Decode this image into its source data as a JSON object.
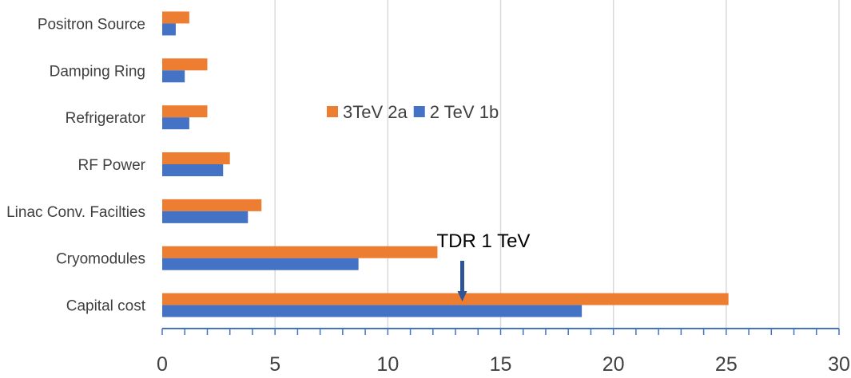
{
  "chart_data": {
    "type": "bar",
    "orientation": "horizontal",
    "categories": [
      "Capital cost",
      "Cryomodules",
      "Linac Conv. Facilties",
      "RF Power",
      "Refrigerator",
      "Damping Ring",
      "Positron Source"
    ],
    "series": [
      {
        "name": "3TeV 2a",
        "color": "#ED7D31",
        "values": [
          25.1,
          12.2,
          4.4,
          3.0,
          2.0,
          2.0,
          1.2
        ]
      },
      {
        "name": "2 TeV 1b",
        "color": "#4472C4",
        "values": [
          18.6,
          8.7,
          3.8,
          2.7,
          1.2,
          1.0,
          0.6
        ]
      }
    ],
    "xlim": [
      0,
      30
    ],
    "xticks": [
      "0",
      "5",
      "10",
      "15",
      "20",
      "25",
      "30"
    ],
    "grid": true,
    "legend_position": "center",
    "annotation": {
      "text": "TDR 1 TeV",
      "x": 13.3,
      "category": "Capital cost"
    }
  }
}
